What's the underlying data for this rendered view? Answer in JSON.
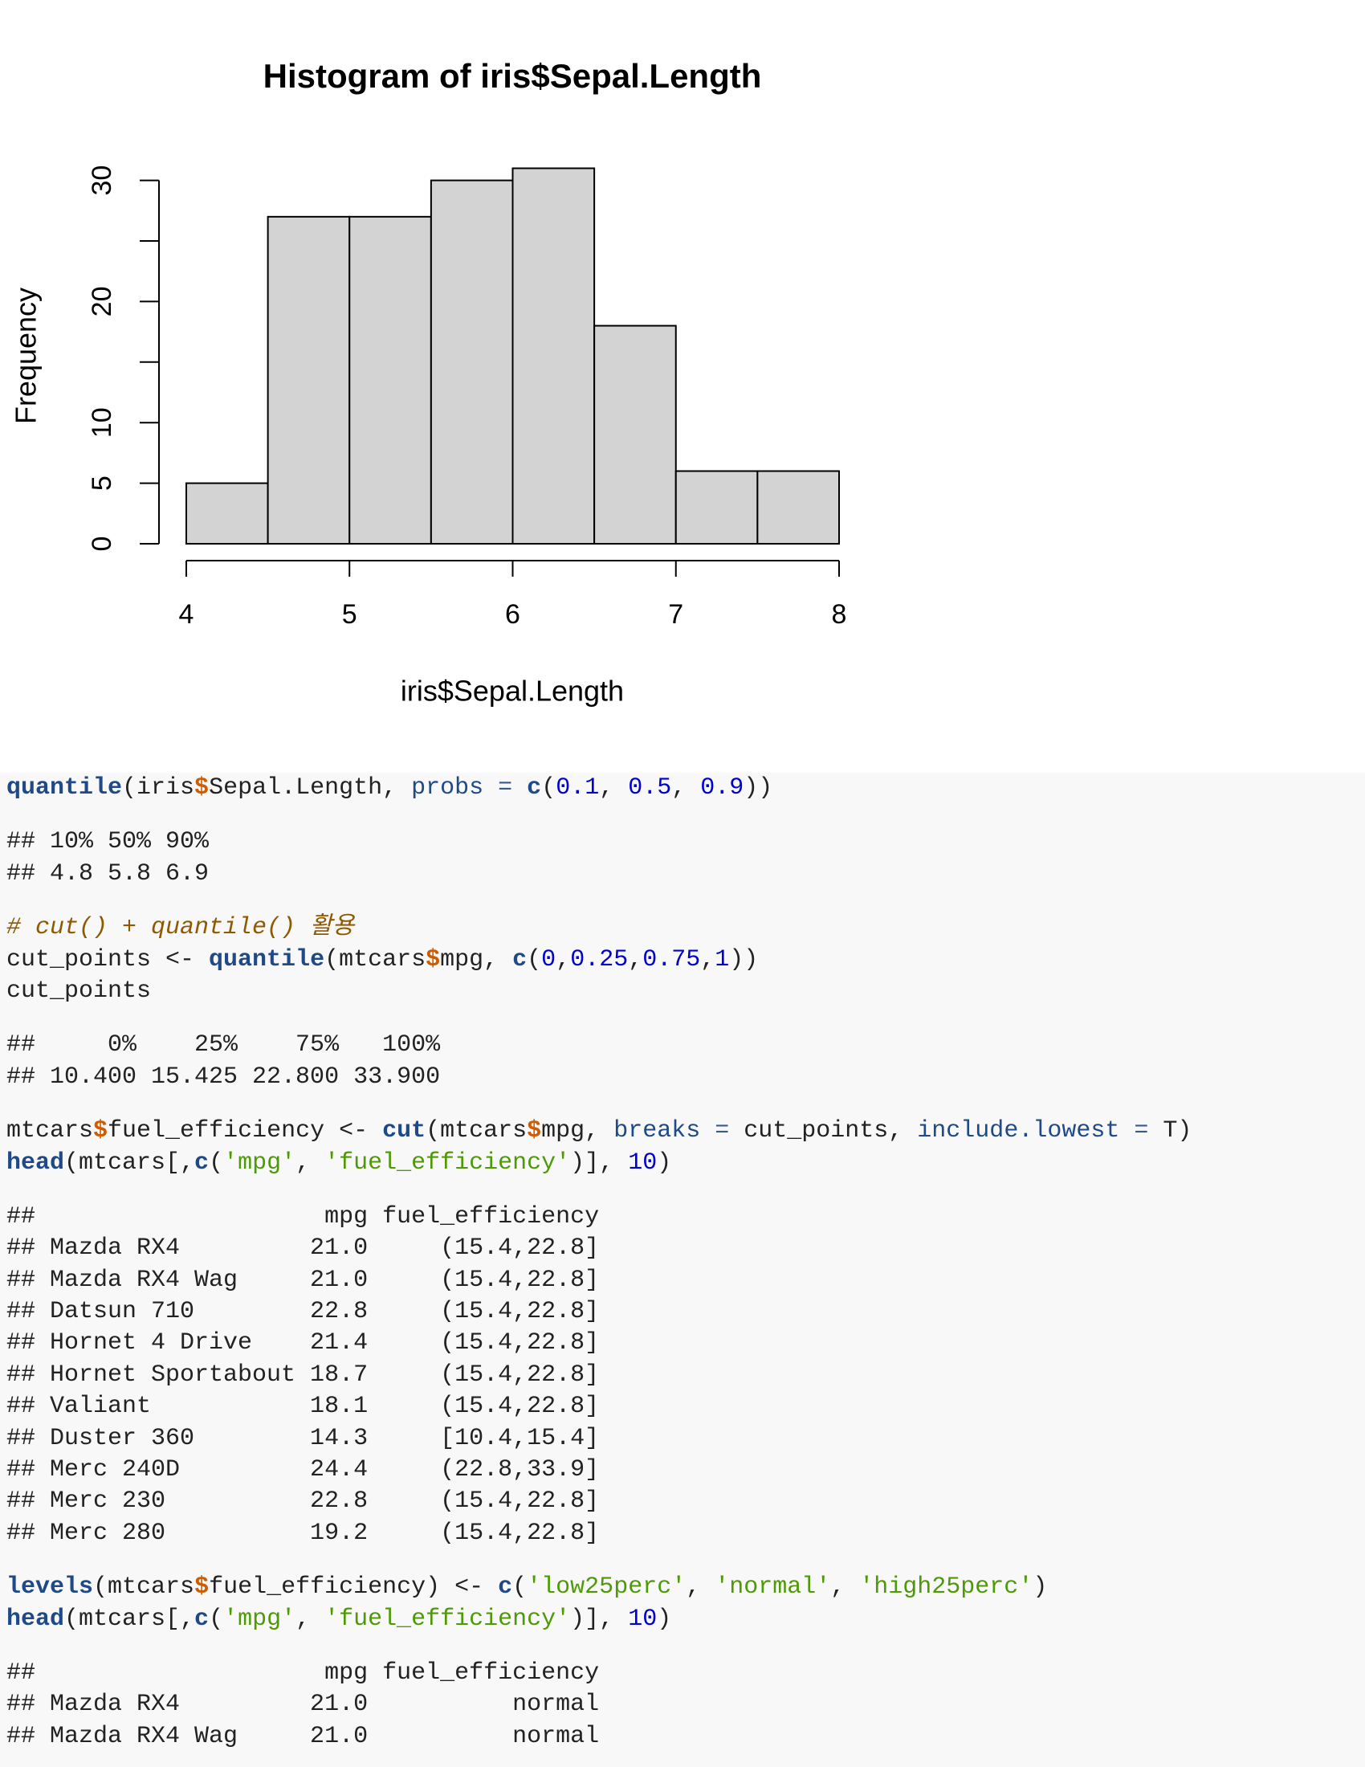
{
  "chart_data": {
    "type": "histogram",
    "title": "Histogram of iris$Sepal.Length",
    "xlabel": "iris$Sepal.Length",
    "ylabel": "Frequency",
    "bins": [
      4,
      4.5,
      5,
      5.5,
      6,
      6.5,
      7,
      7.5,
      8
    ],
    "values": [
      5,
      27,
      27,
      30,
      31,
      18,
      6,
      6
    ],
    "color": "#d3d3d3",
    "xlim": [
      4,
      8
    ],
    "xticks": [
      4,
      5,
      6,
      7,
      8
    ],
    "ylim": [
      0,
      31
    ],
    "yticks": [
      0,
      5,
      10,
      20,
      30
    ],
    "yticks_unlabeled": [
      15,
      25
    ]
  },
  "document": {
    "blocks": [
      {
        "kind": "code",
        "lines": [
          "quantile(iris$Sepal.Length, probs = c(0.1, 0.5, 0.9))"
        ]
      },
      {
        "kind": "output",
        "lines": [
          "## 10% 50% 90% ",
          "## 4.8 5.8 6.9 "
        ]
      },
      {
        "kind": "code",
        "lines": [
          "# cut() + quantile() 활용",
          "cut_points <- quantile(mtcars$mpg, c(0,0.25,0.75,1))",
          "cut_points"
        ]
      },
      {
        "kind": "output",
        "lines": [
          "##     0%    25%    75%   100% ",
          "## 10.400 15.425 22.800 33.900 "
        ]
      },
      {
        "kind": "code",
        "lines": [
          "mtcars$fuel_efficiency <- cut(mtcars$mpg, breaks = cut_points, include.lowest = T)",
          "head(mtcars[,c('mpg', 'fuel_efficiency')], 10)"
        ]
      },
      {
        "kind": "output",
        "lines": [
          "##                    mpg fuel_efficiency",
          "## Mazda RX4         21.0     (15.4,22.8]",
          "## Mazda RX4 Wag     21.0     (15.4,22.8]",
          "## Datsun 710        22.8     (15.4,22.8]",
          "## Hornet 4 Drive    21.4     (15.4,22.8]",
          "## Hornet Sportabout 18.7     (15.4,22.8]",
          "## Valiant           18.1     (15.4,22.8]",
          "## Duster 360        14.3     [10.4,15.4]",
          "## Merc 240D         24.4     (22.8,33.9]",
          "## Merc 230          22.8     (15.4,22.8]",
          "## Merc 280          19.2     (15.4,22.8]"
        ]
      },
      {
        "kind": "code",
        "lines": [
          "levels(mtcars$fuel_efficiency) <- c('low25perc', 'normal', 'high25perc')",
          "head(mtcars[,c('mpg', 'fuel_efficiency')], 10)"
        ]
      },
      {
        "kind": "output",
        "lines": [
          "##                    mpg fuel_efficiency",
          "## Mazda RX4         21.0          normal",
          "## Mazda RX4 Wag     21.0          normal"
        ]
      }
    ]
  }
}
